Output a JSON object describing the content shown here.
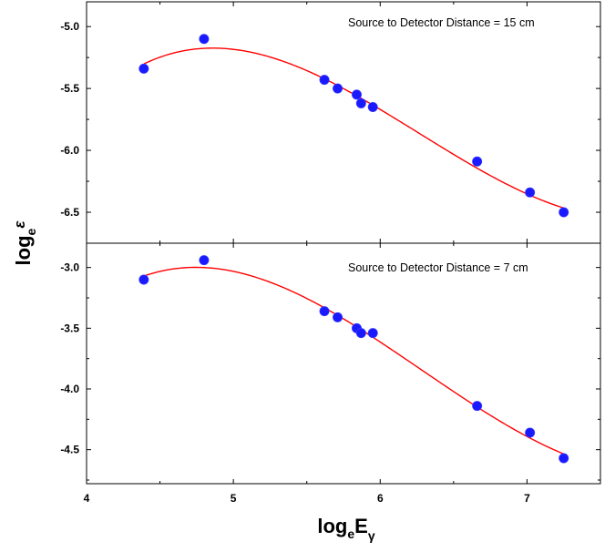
{
  "chart_data": [
    {
      "type": "scatter",
      "title": "",
      "annotation": "Source to Detector Distance = 15 cm",
      "xlim": [
        4.0,
        7.5
      ],
      "ylim": [
        -6.75,
        -4.8
      ],
      "yticks": [
        -5.0,
        -5.5,
        -6.0,
        -6.5
      ],
      "ytick_labels": [
        "-5.0",
        "-5.5",
        "-6.0",
        "-6.5"
      ],
      "grid": false,
      "points": {
        "x": [
          4.39,
          4.8,
          5.62,
          5.71,
          5.84,
          5.87,
          5.95,
          6.66,
          7.02,
          7.25
        ],
        "y": [
          -5.34,
          -5.1,
          -5.43,
          -5.5,
          -5.55,
          -5.62,
          -5.65,
          -6.09,
          -6.34,
          -6.5
        ]
      },
      "fit_color": "#ff0000",
      "marker_color": "#1a1aff"
    },
    {
      "type": "scatter",
      "title": "",
      "annotation": "Source to Detector Distance = 7 cm",
      "xlim": [
        4.0,
        7.5
      ],
      "ylim": [
        -4.78,
        -2.8
      ],
      "yticks": [
        -3.0,
        -3.5,
        -4.0,
        -4.5
      ],
      "ytick_labels": [
        "-3.0",
        "-3.5",
        "-4.0",
        "-4.5"
      ],
      "grid": false,
      "points": {
        "x": [
          4.39,
          4.8,
          5.62,
          5.71,
          5.84,
          5.87,
          5.95,
          6.66,
          7.02,
          7.25
        ],
        "y": [
          -3.1,
          -2.94,
          -3.36,
          -3.41,
          -3.5,
          -3.54,
          -3.54,
          -4.14,
          -4.36,
          -4.57
        ]
      },
      "fit_color": "#ff0000",
      "marker_color": "#1a1aff"
    }
  ],
  "x_axis": {
    "ticks": [
      4,
      5,
      6,
      7
    ],
    "tick_labels": [
      "4",
      "5",
      "6",
      "7"
    ],
    "label_main": "log",
    "label_sub": "e",
    "label_var": "E",
    "label_var_sub": "γ"
  },
  "y_axis": {
    "label_main": "log",
    "label_sub": "e",
    "label_var": "ε"
  }
}
